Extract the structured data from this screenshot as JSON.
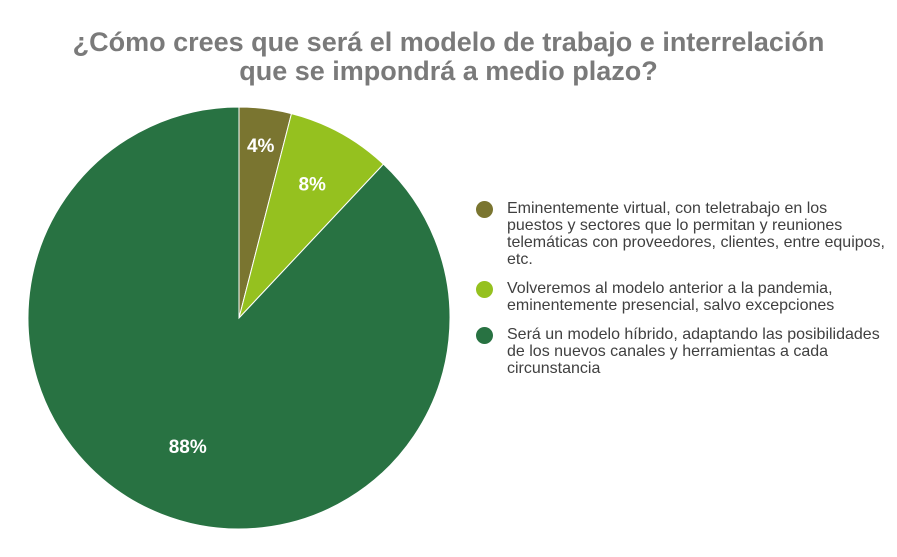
{
  "chart_data": {
    "type": "pie",
    "title_lines": [
      "¿Cómo crees que será el modelo de trabajo e interrelación",
      "que se impondrá a medio plazo?"
    ],
    "slices": [
      {
        "label": "Eminentemente virtual, con teletrabajo en los puestos y sectores que lo permitan y reuniones telemáticas con proveedores, clientes, entre equipos, etc.",
        "value": 4,
        "display": "4%",
        "color": "#7a7530"
      },
      {
        "label": "Volveremos al modelo anterior a la pandemia, eminentemente presencial, salvo excepciones",
        "value": 8,
        "display": "8%",
        "color": "#95c11f"
      },
      {
        "label": "Será un modelo híbrido, adaptando las posibilidades de los nuevos canales y herramientas a cada circunstancia",
        "value": 88,
        "display": "88%",
        "color": "#287242"
      }
    ],
    "legend_position": "right"
  }
}
